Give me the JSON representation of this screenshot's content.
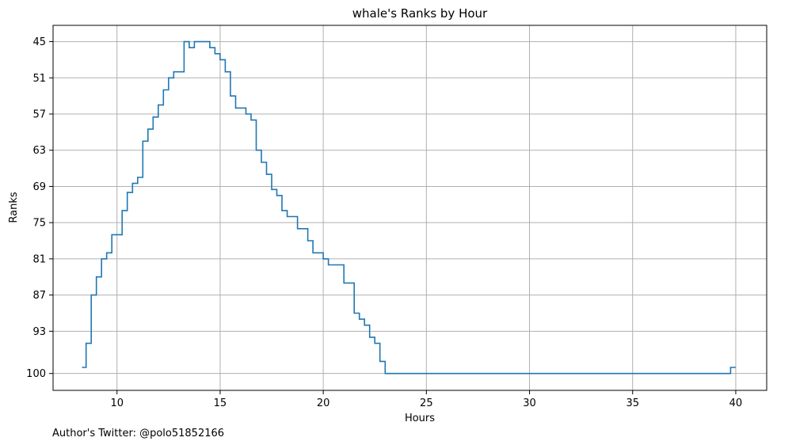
{
  "chart_data": {
    "type": "line",
    "step": "post",
    "title": "whale's Ranks by Hour",
    "xlabel": "Hours",
    "ylabel": "Ranks",
    "footer": "Author's Twitter: @polo51852166",
    "xlim": [
      6.9,
      41.5
    ],
    "ylim": [
      102.8,
      42.3
    ],
    "y_inverted": true,
    "grid": true,
    "xticks": [
      10,
      15,
      20,
      25,
      30,
      35,
      40
    ],
    "yticks": [
      45,
      51,
      57,
      63,
      69,
      75,
      81,
      87,
      93,
      100
    ],
    "series": [
      {
        "color": "#1f77b4",
        "x": [
          8.3,
          8.5,
          8.75,
          9.0,
          9.25,
          9.5,
          9.75,
          10.25,
          10.5,
          10.75,
          11.0,
          11.25,
          11.5,
          11.75,
          12.0,
          12.25,
          12.5,
          12.75,
          13.25,
          13.5,
          13.75,
          14.5,
          14.75,
          15.0,
          15.25,
          15.5,
          15.75,
          16.0,
          16.25,
          16.5,
          16.75,
          17.0,
          17.25,
          17.5,
          17.75,
          18.0,
          18.25,
          18.5,
          18.75,
          19.0,
          19.25,
          19.5,
          19.75,
          20.0,
          20.25,
          20.5,
          21.0,
          21.5,
          21.75,
          22.0,
          22.25,
          22.5,
          22.75,
          23.0,
          23.25,
          23.5,
          39.75,
          40.0
        ],
        "y": [
          99,
          95,
          87,
          84,
          81,
          80,
          77,
          73,
          70,
          68.5,
          67.5,
          61.5,
          59.5,
          57.5,
          55.5,
          53,
          51,
          50,
          45,
          46,
          45,
          46,
          47,
          48,
          50,
          54,
          56,
          56,
          57,
          58,
          63,
          65,
          67,
          69.5,
          70.5,
          73,
          74,
          74,
          76,
          76,
          78,
          80,
          80,
          81,
          82,
          82,
          85,
          90,
          91,
          92,
          94,
          95,
          98,
          100,
          100,
          100,
          99,
          99
        ]
      }
    ]
  }
}
